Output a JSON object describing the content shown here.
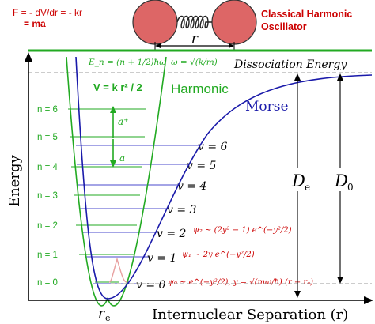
{
  "header": {
    "force_eq_line1": "F = - dV/dr = - kr",
    "force_eq_line2": "= ma",
    "classical_title_line1": "Classical Harmonic",
    "classical_title_line2": "Oscillator",
    "spring_label": "r"
  },
  "curves": {
    "harmonic_label": "Harmonic",
    "morse_label": "Morse",
    "dissociation_label": "Dissociation Energy",
    "energy_formula": "E_n = (n + 1/2)ħω",
    "omega_formula": "ω = √(k/m)",
    "potential_formula": "V = k r² / 2"
  },
  "axes": {
    "ylabel": "Energy",
    "xlabel": "Internuclear Separation (r)",
    "re_label": "r",
    "re_sub": "e",
    "De_label": "D",
    "De_sub": "e",
    "D0_label": "D",
    "D0_sub": "0"
  },
  "harmonic_levels": [
    "n = 0",
    "n = 1",
    "n = 2",
    "n = 3",
    "n = 4",
    "n = 5",
    "n = 6"
  ],
  "morse_levels": [
    "v = 0",
    "v = 1",
    "v = 2",
    "v = 3",
    "v = 4",
    "v = 5",
    "v = 6"
  ],
  "operators": {
    "raise": "a⁺",
    "lower": "a"
  },
  "wavefunctions": {
    "psi0": "ψ₀ ~ e^(−y²/2),  y = √(mω/ħ) (r − rₑ)",
    "psi1": "ψ₁ ~ 2y e^(−y²/2)",
    "psi2": "ψ₂ ~ (2y² − 1) e^(−y²/2)"
  },
  "colors": {
    "harmonic": "#22aa22",
    "morse": "#1a1aaa",
    "red_text": "#cc0000",
    "ball": "#dd6666",
    "axis": "#000000"
  }
}
